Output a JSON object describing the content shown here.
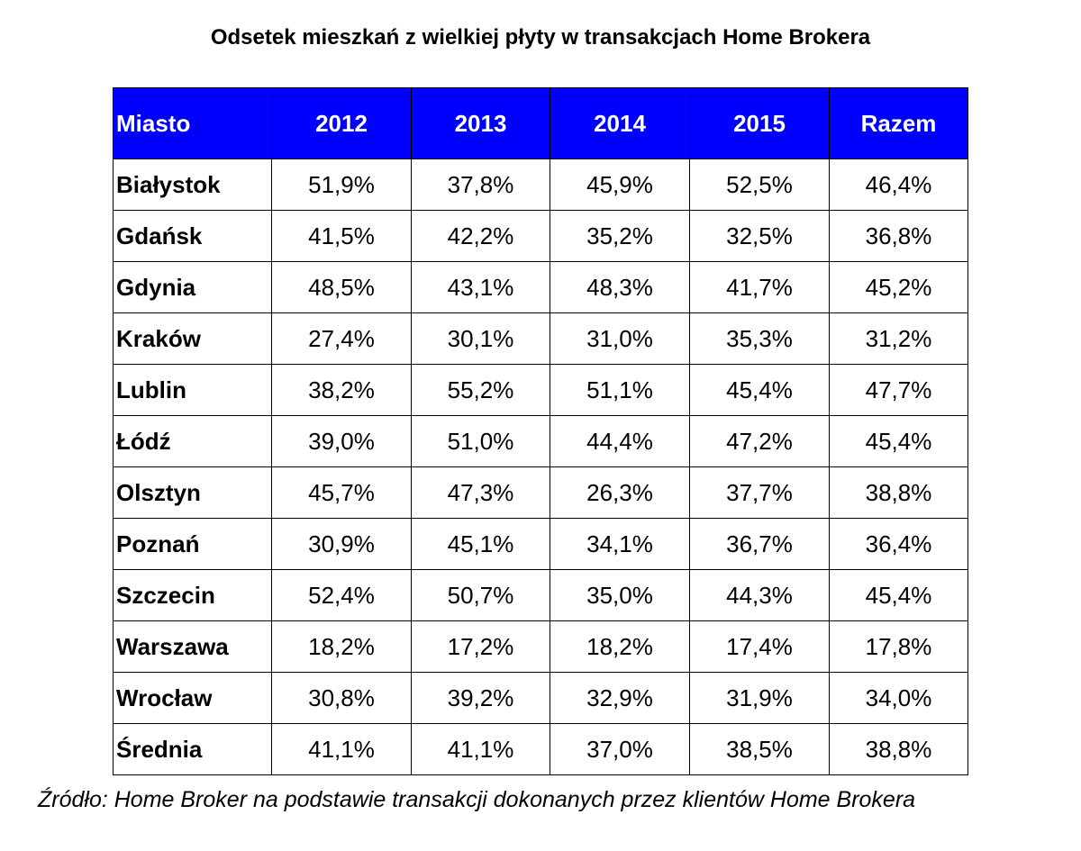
{
  "title": "Odsetek mieszkań z wielkiej płyty w transakcjach Home Brokera",
  "table": {
    "header": [
      "Miasto",
      "2012",
      "2013",
      "2014",
      "2015",
      "Razem"
    ],
    "rows": [
      [
        "Białystok",
        "51,9%",
        "37,8%",
        "45,9%",
        "52,5%",
        "46,4%"
      ],
      [
        "Gdańsk",
        "41,5%",
        "42,2%",
        "35,2%",
        "32,5%",
        "36,8%"
      ],
      [
        "Gdynia",
        "48,5%",
        "43,1%",
        "48,3%",
        "41,7%",
        "45,2%"
      ],
      [
        "Kraków",
        "27,4%",
        "30,1%",
        "31,0%",
        "35,3%",
        "31,2%"
      ],
      [
        "Lublin",
        "38,2%",
        "55,2%",
        "51,1%",
        "45,4%",
        "47,7%"
      ],
      [
        "Łódź",
        "39,0%",
        "51,0%",
        "44,4%",
        "47,2%",
        "45,4%"
      ],
      [
        "Olsztyn",
        "45,7%",
        "47,3%",
        "26,3%",
        "37,7%",
        "38,8%"
      ],
      [
        "Poznań",
        "30,9%",
        "45,1%",
        "34,1%",
        "36,7%",
        "36,4%"
      ],
      [
        "Szczecin",
        "52,4%",
        "50,7%",
        "35,0%",
        "44,3%",
        "45,4%"
      ],
      [
        "Warszawa",
        "18,2%",
        "17,2%",
        "18,2%",
        "17,4%",
        "17,8%"
      ],
      [
        "Wrocław",
        "30,8%",
        "39,2%",
        "32,9%",
        "31,9%",
        "34,0%"
      ],
      [
        "Średnia",
        "41,1%",
        "41,1%",
        "37,0%",
        "38,5%",
        "38,8%"
      ]
    ]
  },
  "source": "Źródło: Home Broker na podstawie transakcji dokonanych przez klientów Home Brokera",
  "colors": {
    "header_bg": "#0000ff",
    "header_text": "#ffffff",
    "border": "#000000"
  }
}
